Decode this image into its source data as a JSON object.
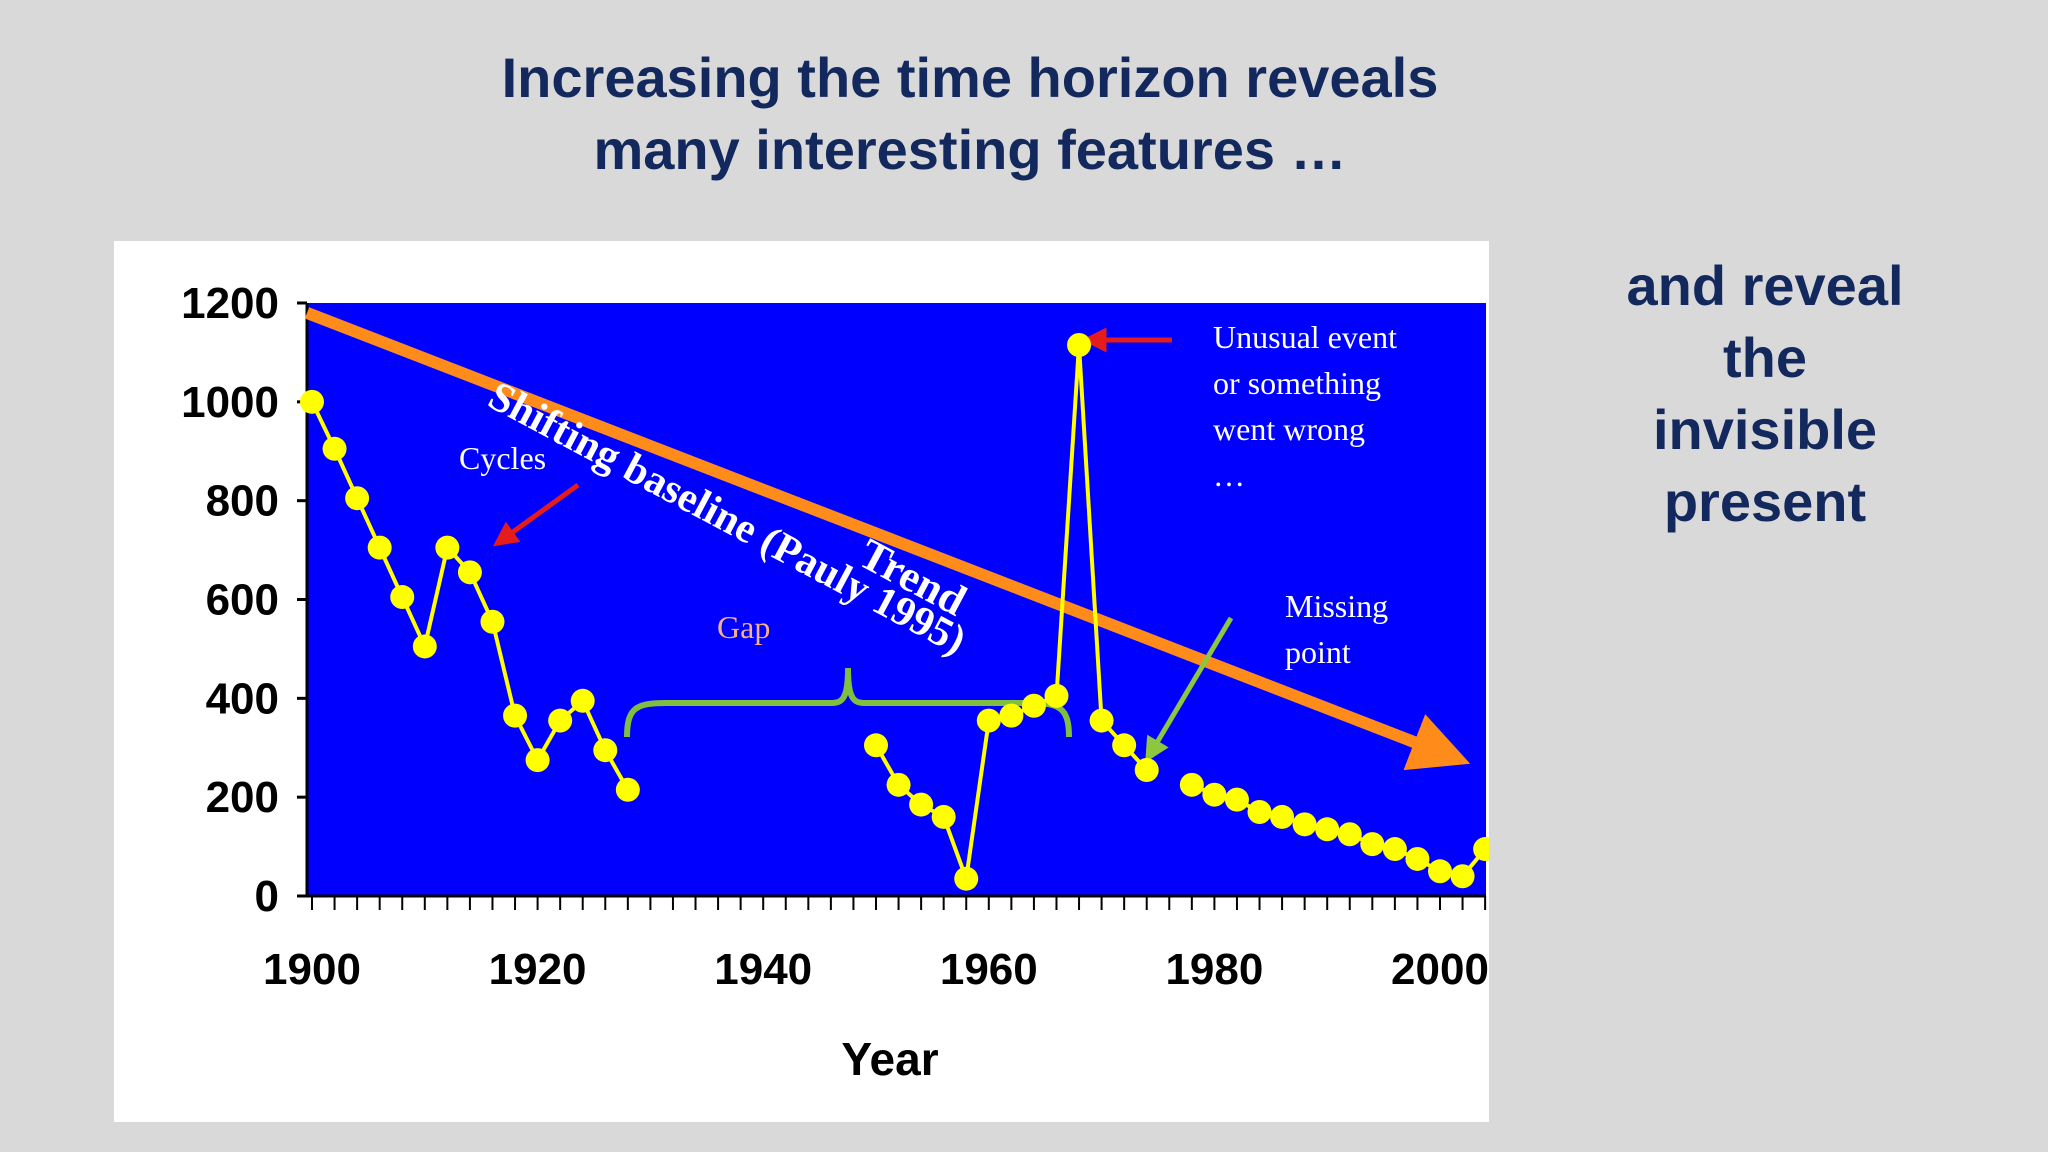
{
  "slide": {
    "title_lines": [
      "Increasing the time horizon reveals",
      "many interesting features …"
    ],
    "side_note_lines": [
      "and reveal",
      "the",
      "invisible",
      "present"
    ]
  },
  "colors": {
    "background": "#d9d9d9",
    "title_text": "#13295e",
    "plot_background": "#0000ff",
    "series_line": "#ffff00",
    "trend_arrow": "#ff8c1a",
    "gap_brace": "#7fbf3f",
    "pointer_arrow_red": "#e51c1c",
    "pointer_arrow_green": "#8dc63f",
    "gap_label": "#f4b183",
    "annotation_text": "#ffffff"
  },
  "chart_data": {
    "type": "line",
    "title": "",
    "xlabel": "Year",
    "ylabel": "",
    "xlim": [
      1900,
      2006
    ],
    "ylim": [
      0,
      1200
    ],
    "x_ticks": [
      1900,
      1920,
      1940,
      1960,
      1980,
      2000
    ],
    "y_ticks": [
      0,
      200,
      400,
      600,
      800,
      1000,
      1200
    ],
    "grid": false,
    "legend": "none",
    "series": [
      {
        "x": [
          1900,
          1902,
          1904,
          1906,
          1908,
          1910,
          1912,
          1914,
          1916,
          1918,
          1920,
          1922,
          1924,
          1926,
          1928,
          1950,
          1952,
          1954,
          1956,
          1958,
          1960,
          1962,
          1964,
          1966,
          1968,
          1970,
          1972,
          1974,
          1978,
          1980,
          1982,
          1984,
          1986,
          1988,
          1990,
          1992,
          1994,
          1996,
          1998,
          2000,
          2002,
          2004
        ],
        "values": [
          1000,
          905,
          805,
          705,
          605,
          505,
          705,
          655,
          555,
          365,
          275,
          355,
          395,
          295,
          215,
          305,
          225,
          185,
          160,
          35,
          355,
          365,
          385,
          405,
          1115,
          355,
          305,
          255,
          225,
          205,
          195,
          170,
          160,
          145,
          135,
          125,
          105,
          95,
          75,
          50,
          40,
          95
        ],
        "segments": [
          [
            0,
            14
          ],
          [
            15,
            27
          ],
          [
            28,
            41
          ]
        ]
      }
    ],
    "trend": {
      "from": [
        1900,
        1180
      ],
      "to": [
        2004,
        255
      ],
      "label": "Trend"
    },
    "annotations": {
      "shifting_baseline": "Shifting baseline (Pauly 1995)",
      "cycles": "Cycles",
      "gap": "Gap",
      "unusual_event": [
        "Unusual event",
        "or something",
        "went wrong",
        "…"
      ],
      "missing_point": [
        "Missing",
        "point"
      ]
    }
  }
}
